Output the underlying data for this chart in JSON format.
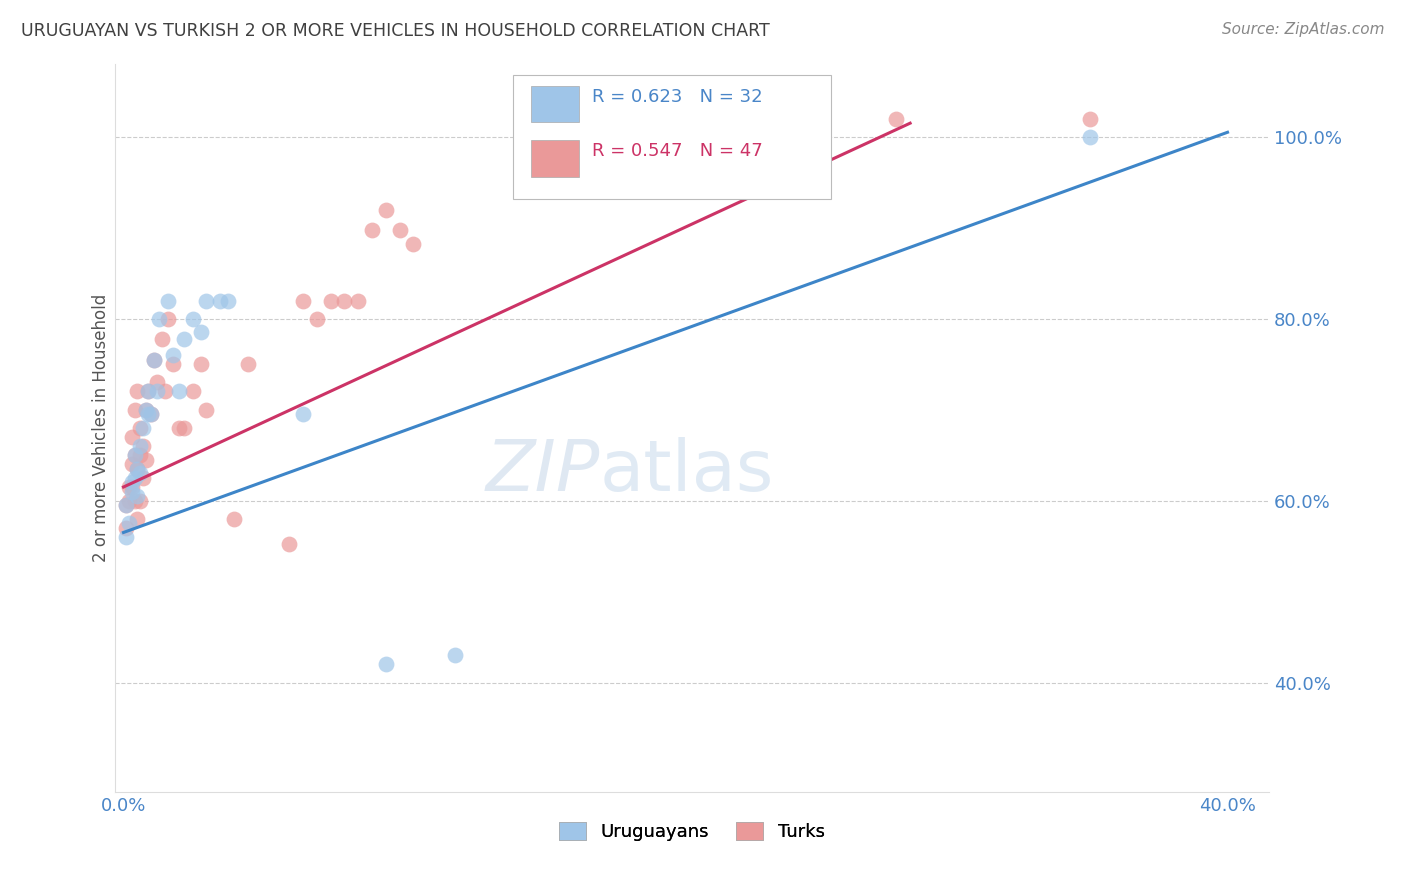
{
  "title": "URUGUAYAN VS TURKISH 2 OR MORE VEHICLES IN HOUSEHOLD CORRELATION CHART",
  "source": "Source: ZipAtlas.com",
  "ylabel": "2 or more Vehicles in Household",
  "watermark_zip": "ZIP",
  "watermark_atlas": "atlas",
  "xlim_min": -0.003,
  "xlim_max": 0.415,
  "ylim_min": 0.28,
  "ylim_max": 1.08,
  "ytick_positions": [
    0.4,
    0.6,
    0.8,
    1.0
  ],
  "ytick_labels": [
    "40.0%",
    "60.0%",
    "80.0%",
    "100.0%"
  ],
  "xtick_positions": [
    0.0,
    0.05,
    0.1,
    0.15,
    0.2,
    0.25,
    0.3,
    0.35,
    0.4
  ],
  "xtick_labels": [
    "0.0%",
    "",
    "",
    "",
    "",
    "",
    "",
    "",
    "40.0%"
  ],
  "blue_R": 0.623,
  "blue_N": 32,
  "pink_R": 0.547,
  "pink_N": 47,
  "blue_scatter_color": "#9fc5e8",
  "pink_scatter_color": "#ea9999",
  "line_blue_color": "#3d85c8",
  "line_pink_color": "#cc3366",
  "blue_line_y0": 0.565,
  "blue_line_y1": 1.005,
  "pink_line_y0": 0.615,
  "pink_line_y1": 1.015,
  "pink_line_x1": 0.285,
  "background_color": "#ffffff",
  "grid_color": "#cccccc",
  "title_color": "#404040",
  "axis_color": "#4a86c8",
  "tick_color": "#4a86c8",
  "ylabel_color": "#555555",
  "source_color": "#888888",
  "legend_label_blue": "R = 0.623   N = 32",
  "legend_label_pink": "R = 0.547   N = 47",
  "legend_bottom_blue": "Uruguayans",
  "legend_bottom_pink": "Turks",
  "uruguayan_x": [
    0.001,
    0.001,
    0.002,
    0.003,
    0.003,
    0.004,
    0.004,
    0.005,
    0.005,
    0.006,
    0.006,
    0.007,
    0.008,
    0.009,
    0.009,
    0.01,
    0.011,
    0.012,
    0.013,
    0.016,
    0.018,
    0.02,
    0.022,
    0.025,
    0.028,
    0.03,
    0.035,
    0.038,
    0.065,
    0.095,
    0.12,
    0.35
  ],
  "uruguayan_y": [
    0.56,
    0.595,
    0.575,
    0.61,
    0.62,
    0.625,
    0.65,
    0.605,
    0.635,
    0.63,
    0.66,
    0.68,
    0.7,
    0.72,
    0.695,
    0.695,
    0.755,
    0.72,
    0.8,
    0.82,
    0.76,
    0.72,
    0.778,
    0.8,
    0.785,
    0.82,
    0.82,
    0.82,
    0.695,
    0.42,
    0.43,
    1.0
  ],
  "turkish_x": [
    0.001,
    0.001,
    0.002,
    0.002,
    0.003,
    0.003,
    0.003,
    0.004,
    0.004,
    0.004,
    0.005,
    0.005,
    0.005,
    0.006,
    0.006,
    0.006,
    0.007,
    0.007,
    0.008,
    0.008,
    0.009,
    0.01,
    0.011,
    0.012,
    0.014,
    0.015,
    0.016,
    0.018,
    0.02,
    0.022,
    0.025,
    0.028,
    0.03,
    0.04,
    0.045,
    0.06,
    0.065,
    0.07,
    0.075,
    0.08,
    0.085,
    0.09,
    0.095,
    0.1,
    0.105,
    0.28,
    0.35
  ],
  "turkish_y": [
    0.57,
    0.595,
    0.6,
    0.615,
    0.615,
    0.64,
    0.67,
    0.6,
    0.65,
    0.7,
    0.58,
    0.635,
    0.72,
    0.6,
    0.65,
    0.68,
    0.625,
    0.66,
    0.645,
    0.7,
    0.72,
    0.695,
    0.755,
    0.73,
    0.778,
    0.72,
    0.8,
    0.75,
    0.68,
    0.68,
    0.72,
    0.75,
    0.7,
    0.58,
    0.75,
    0.552,
    0.82,
    0.8,
    0.82,
    0.82,
    0.82,
    0.898,
    0.92,
    0.898,
    0.882,
    1.02,
    1.02
  ]
}
